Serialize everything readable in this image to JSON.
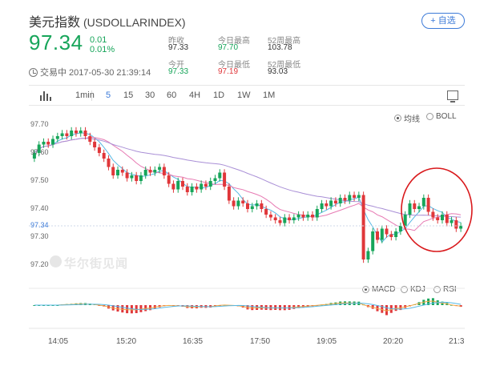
{
  "header": {
    "name": "美元指数",
    "code": "(USDOLLARINDEX)",
    "add_button": "+ 自选",
    "price": "97.34",
    "change": "0.01",
    "change_pct": "0.01%",
    "status": "交易中 2017-05-30 21:39:14"
  },
  "stats": {
    "prev_close_label": "昨收",
    "prev_close": "97.33",
    "open_label": "今开",
    "open": "97.33",
    "day_high_label": "今日最高",
    "day_high": "97.70",
    "day_low_label": "今日最低",
    "day_low": "97.19",
    "wk52_high_label": "52周最高",
    "wk52_high": "103.78",
    "wk52_low_label": "52周最低",
    "wk52_low": "93.03"
  },
  "toolbar": {
    "intervals": [
      "1min",
      "5",
      "15",
      "30",
      "60",
      "4H",
      "1D",
      "1W",
      "1M"
    ],
    "active": "5"
  },
  "legend": {
    "ma": "均线",
    "boll": "BOLL",
    "macd": "MACD",
    "kdj": "KDJ",
    "rsi": "RSI"
  },
  "watermark": "华尔街见闻",
  "chart_data": {
    "type": "candlestick",
    "y_ticks": [
      "97.70",
      "97.60",
      "97.50",
      "97.40",
      "97.34",
      "97.30",
      "97.20"
    ],
    "ylim": [
      97.18,
      97.74
    ],
    "x_ticks": [
      "14:05",
      "15:20",
      "16:35",
      "17:50",
      "19:05",
      "20:20",
      "21:3"
    ],
    "last_price": 97.34,
    "colors": {
      "up": "#17a55a",
      "down": "#e0373a",
      "ma1": "#56b9e5",
      "ma2": "#e77ab3",
      "ma3": "#a98fd6",
      "annotation": "#d9191c"
    },
    "closes": [
      97.6,
      97.63,
      97.64,
      97.63,
      97.65,
      97.66,
      97.67,
      97.66,
      97.68,
      97.67,
      97.68,
      97.66,
      97.64,
      97.62,
      97.6,
      97.58,
      97.55,
      97.52,
      97.54,
      97.53,
      97.51,
      97.52,
      97.5,
      97.52,
      97.54,
      97.53,
      97.54,
      97.55,
      97.52,
      97.49,
      97.47,
      97.5,
      97.48,
      97.46,
      97.48,
      97.47,
      97.49,
      97.48,
      97.5,
      97.51,
      97.53,
      97.48,
      97.43,
      97.41,
      97.43,
      97.42,
      97.4,
      97.41,
      97.42,
      97.4,
      97.38,
      97.37,
      97.36,
      97.35,
      97.37,
      97.36,
      97.37,
      97.38,
      97.37,
      97.38,
      97.37,
      97.4,
      97.42,
      97.41,
      97.43,
      97.42,
      97.44,
      97.43,
      97.45,
      97.44,
      97.45,
      97.22,
      97.25,
      97.32,
      97.29,
      97.33,
      97.31,
      97.3,
      97.32,
      97.34,
      97.38,
      97.42,
      97.4,
      97.41,
      97.44,
      97.39,
      97.37,
      97.36,
      97.38,
      97.35,
      97.36,
      97.33,
      97.34
    ]
  }
}
